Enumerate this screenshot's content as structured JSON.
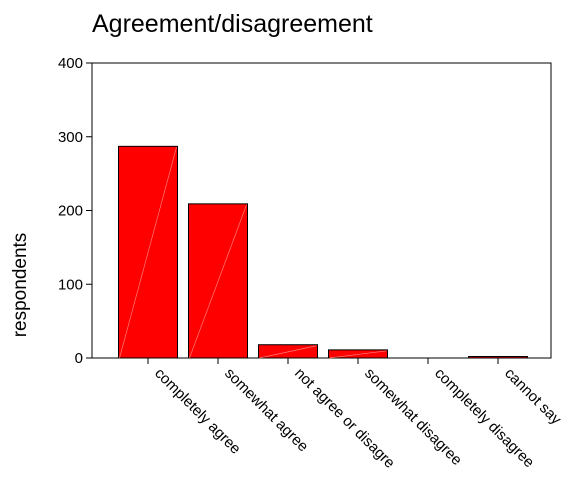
{
  "chart_data": {
    "type": "bar",
    "title": "Agreement/disagreement",
    "xlabel": "",
    "ylabel": "respondents",
    "categories": [
      "completely agree",
      "somewhat agree",
      "not agree or disagre",
      "somewhat disagree",
      "completely disagree",
      "cannot say"
    ],
    "values": [
      287,
      209,
      18,
      11,
      0,
      2
    ],
    "ylim": [
      0,
      400
    ],
    "yticks": [
      0,
      100,
      200,
      300,
      400
    ],
    "bar_color": "#ff0000",
    "grid": false,
    "legend": "none"
  }
}
